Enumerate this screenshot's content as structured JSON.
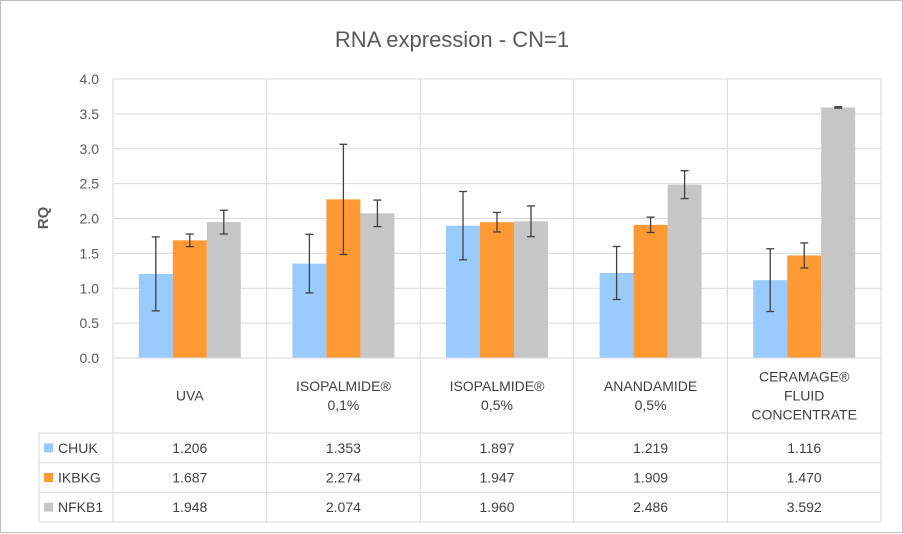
{
  "colors": {
    "chuk": "#99cbff",
    "ikbkg": "#ff9933",
    "nfkb1": "#c6c6c6",
    "grid": "#d9d9d9",
    "text": "#595959",
    "error_bar": "#404040"
  },
  "chart_data": {
    "type": "bar",
    "title": "RNA expression - CN=1",
    "xlabel": "",
    "ylabel": "RQ",
    "ylim": [
      0,
      4.0
    ],
    "yticks": [
      "0.0",
      "0.5",
      "1.0",
      "1.5",
      "2.0",
      "2.5",
      "3.0",
      "3.5",
      "4.0"
    ],
    "grid": true,
    "legend": "data-table",
    "categories": [
      [
        "UVA"
      ],
      [
        "ISOPALMIDE®",
        "0,1%"
      ],
      [
        "ISOPALMIDE®",
        "0,5%"
      ],
      [
        "ANANDAMIDE",
        "0,5%"
      ],
      [
        "CERAMAGE®",
        "FLUID",
        "CONCENTRATE"
      ]
    ],
    "series": [
      {
        "name": "CHUK",
        "color": "#99cbff",
        "values": [
          1.206,
          1.353,
          1.897,
          1.219,
          1.116
        ],
        "labels": [
          "1.206",
          "1.353",
          "1.897",
          "1.219",
          "1.116"
        ],
        "errors": [
          0.53,
          0.42,
          0.49,
          0.38,
          0.45
        ]
      },
      {
        "name": "IKBKG",
        "color": "#ff9933",
        "values": [
          1.687,
          2.274,
          1.947,
          1.909,
          1.47
        ],
        "labels": [
          "1.687",
          "2.274",
          "1.947",
          "1.909",
          "1.470"
        ],
        "errors": [
          0.09,
          0.79,
          0.14,
          0.11,
          0.18
        ]
      },
      {
        "name": "NFKB1",
        "color": "#c6c6c6",
        "values": [
          1.948,
          2.074,
          1.96,
          2.486,
          3.592
        ],
        "labels": [
          "1.948",
          "2.074",
          "1.960",
          "2.486",
          "3.592"
        ],
        "errors": [
          0.17,
          0.19,
          0.22,
          0.2,
          0.01
        ]
      }
    ]
  }
}
